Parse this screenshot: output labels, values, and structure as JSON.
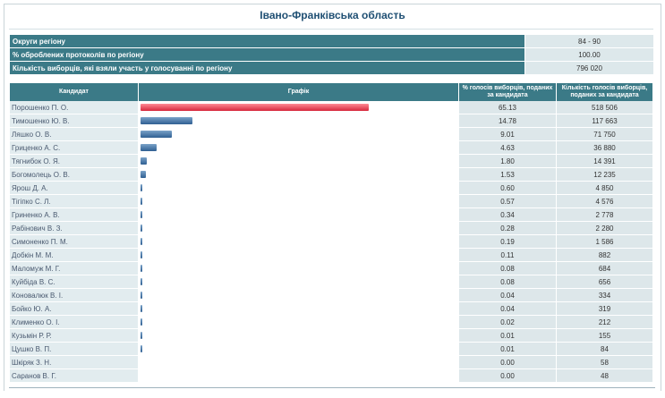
{
  "title": "Івано-Франківська область",
  "summary": [
    {
      "label": "Округи регіону",
      "value": "84 - 90"
    },
    {
      "label": "% оброблених протоколів по регіону",
      "value": "100.00"
    },
    {
      "label": "Кількість виборців, які взяли участь у голосуванні по регіону",
      "value": "796 020"
    }
  ],
  "headers": {
    "candidate": "Кандидат",
    "graph": "Графік",
    "pct": "% голосів виборців, поданих за кандидата",
    "votes": "Кількість голосів виборців, поданих за кандидата"
  },
  "colors": {
    "header": "#3b7a87",
    "bar_leader": "#d7283c",
    "bar_other": "#2f5f92"
  },
  "candidates": [
    {
      "name": "Порошенко П. О.",
      "pct": "65.13",
      "votes": "518 506"
    },
    {
      "name": "Тимошенко Ю. В.",
      "pct": "14.78",
      "votes": "117 663"
    },
    {
      "name": "Ляшко О. В.",
      "pct": "9.01",
      "votes": "71 750"
    },
    {
      "name": "Гриценко А. С.",
      "pct": "4.63",
      "votes": "36 880"
    },
    {
      "name": "Тягнибок О. Я.",
      "pct": "1.80",
      "votes": "14 391"
    },
    {
      "name": "Богомолець О. В.",
      "pct": "1.53",
      "votes": "12 235"
    },
    {
      "name": "Ярош Д. А.",
      "pct": "0.60",
      "votes": "4 850"
    },
    {
      "name": "Тігіпко С. Л.",
      "pct": "0.57",
      "votes": "4 576"
    },
    {
      "name": "Гриненко А. В.",
      "pct": "0.34",
      "votes": "2 778"
    },
    {
      "name": "Рабінович В. З.",
      "pct": "0.28",
      "votes": "2 280"
    },
    {
      "name": "Симоненко П. М.",
      "pct": "0.19",
      "votes": "1 586"
    },
    {
      "name": "Добкін М. М.",
      "pct": "0.11",
      "votes": "882"
    },
    {
      "name": "Маломуж М. Г.",
      "pct": "0.08",
      "votes": "684"
    },
    {
      "name": "Куйбіда В. С.",
      "pct": "0.08",
      "votes": "656"
    },
    {
      "name": "Коновалюк В. І.",
      "pct": "0.04",
      "votes": "334"
    },
    {
      "name": "Бойко Ю. А.",
      "pct": "0.04",
      "votes": "319"
    },
    {
      "name": "Клименко О. І.",
      "pct": "0.02",
      "votes": "212"
    },
    {
      "name": "Кузьмін Р. Р.",
      "pct": "0.01",
      "votes": "155"
    },
    {
      "name": "Цушко В. П.",
      "pct": "0.01",
      "votes": "84"
    },
    {
      "name": "Шкіряк З. Н.",
      "pct": "0.00",
      "votes": "58"
    },
    {
      "name": "Саранов В. Г.",
      "pct": "0.00",
      "votes": "48"
    }
  ]
}
